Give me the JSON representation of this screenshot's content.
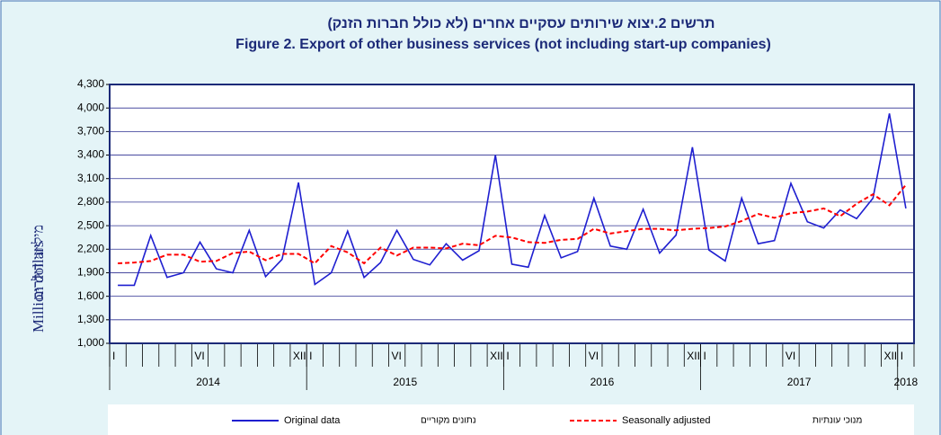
{
  "chart_data": {
    "type": "line",
    "title_he": "תרשים 2.יצוא שירותים עסקיים אחרים (לא כולל חברות הזנק)",
    "title": "Figure 2.  Export of other business services (not including start-up companies)",
    "ylabel": "Million dollars",
    "ylabel_he": "מיליוני דולרים",
    "categories": [
      "I",
      null,
      null,
      null,
      null,
      "VI",
      null,
      null,
      null,
      null,
      null,
      "XII",
      "I",
      null,
      null,
      null,
      null,
      "VI",
      null,
      null,
      null,
      null,
      null,
      "XII",
      "I",
      null,
      null,
      null,
      null,
      "VI",
      null,
      null,
      null,
      null,
      null,
      "XII",
      "I",
      null,
      null,
      null,
      null,
      "VI",
      null,
      null,
      null,
      null,
      null,
      "XII",
      "I"
    ],
    "x_groups": [
      {
        "label": "2014",
        "span": 12
      },
      {
        "label": "2015",
        "span": 12
      },
      {
        "label": "2016",
        "span": 12
      },
      {
        "label": "2017",
        "span": 12
      },
      {
        "label": "2018",
        "span": 1
      }
    ],
    "series": [
      {
        "name": "Original data",
        "name_he": "נתונים מקוריים",
        "color": "#1f1fd0",
        "dashed": false,
        "values": [
          1740,
          1740,
          2375,
          1840,
          1900,
          2290,
          1950,
          1900,
          2440,
          1850,
          2070,
          3050,
          1750,
          1900,
          2430,
          1840,
          2030,
          2440,
          2070,
          2000,
          2270,
          2060,
          2180,
          3400,
          2010,
          1970,
          2630,
          2090,
          2170,
          2850,
          2240,
          2200,
          2710,
          2150,
          2380,
          3500,
          2190,
          2050,
          2850,
          2270,
          2310,
          3040,
          2550,
          2470,
          2700,
          2590,
          2850,
          3930,
          2720
        ]
      },
      {
        "name": "Seasonally adjusted",
        "name_he": "מנוכי עונתיות",
        "color": "#ff0000",
        "dashed": true,
        "values": [
          2020,
          2030,
          2050,
          2130,
          2130,
          2040,
          2050,
          2150,
          2170,
          2060,
          2140,
          2140,
          2020,
          2240,
          2160,
          2020,
          2220,
          2120,
          2220,
          2220,
          2210,
          2270,
          2250,
          2370,
          2350,
          2290,
          2280,
          2320,
          2330,
          2460,
          2400,
          2430,
          2460,
          2460,
          2440,
          2460,
          2470,
          2490,
          2560,
          2650,
          2600,
          2660,
          2680,
          2720,
          2620,
          2780,
          2900,
          2760,
          3020
        ]
      }
    ],
    "ylim": [
      1000,
      4300
    ],
    "yticks": [
      {
        "value": 1000,
        "label": "1,000"
      },
      {
        "value": 1300,
        "label": "1,300"
      },
      {
        "value": 1600,
        "label": "1,600"
      },
      {
        "value": 1900,
        "label": "1,900"
      },
      {
        "value": 2200,
        "label": "2,200"
      },
      {
        "value": 2500,
        "label": "2,500"
      },
      {
        "value": 2800,
        "label": "2,800"
      },
      {
        "value": 3100,
        "label": "3,100"
      },
      {
        "value": 3400,
        "label": "3,400"
      },
      {
        "value": 3700,
        "label": "3,700"
      },
      {
        "value": 4000,
        "label": "4,000"
      },
      {
        "value": 4300,
        "label": "4,300"
      }
    ],
    "grid": true
  }
}
